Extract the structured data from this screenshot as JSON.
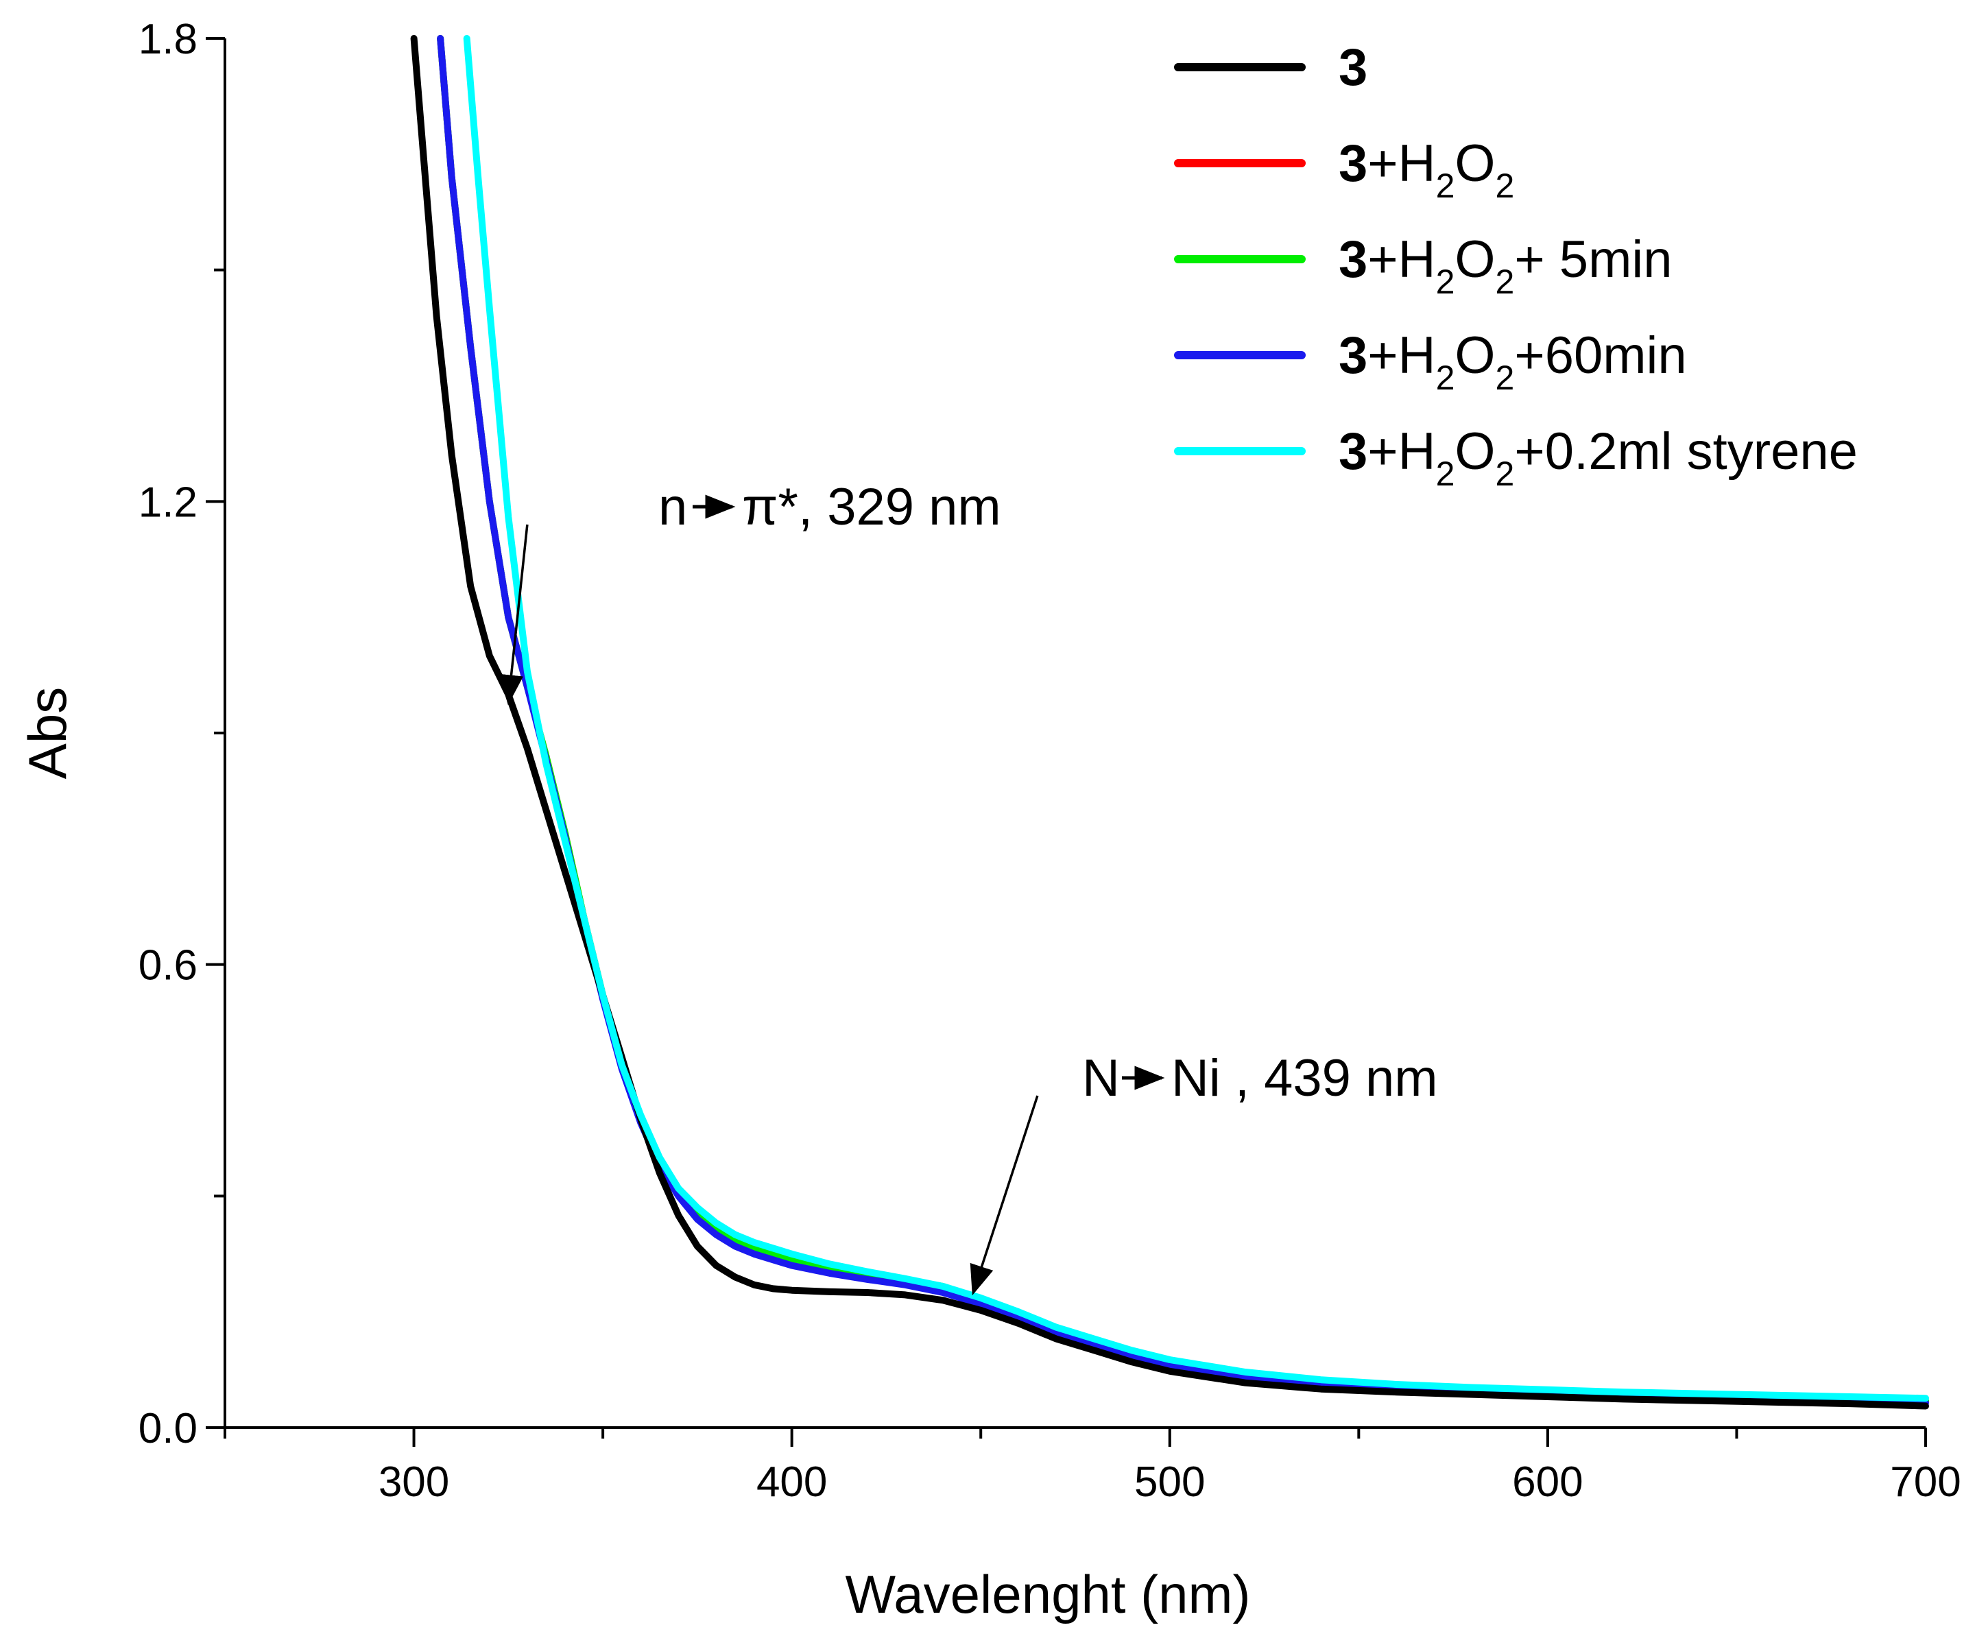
{
  "chart_data": {
    "type": "line",
    "title": "",
    "xlabel": "Wavelenght (nm)",
    "ylabel": "Abs",
    "xlim": [
      250,
      700
    ],
    "ylim": [
      0.0,
      1.8
    ],
    "x_ticks": [
      300,
      400,
      500,
      600,
      700
    ],
    "y_ticks": [
      0.0,
      0.6,
      1.2,
      1.8
    ],
    "x_tick_labels": [
      "300",
      "400",
      "500",
      "600",
      "700"
    ],
    "y_tick_labels": [
      "0.0",
      "0.6",
      "1.2",
      "1.8"
    ],
    "grid": false,
    "legend_position": "top-right",
    "series": [
      {
        "name": "3+H2O2",
        "label": {
          "bold": "3",
          "parts": [
            [
              "+H",
              ""
            ],
            [
              "2",
              "sub"
            ],
            [
              "O",
              ""
            ],
            [
              "2",
              "sub"
            ]
          ]
        },
        "color": "#ff0000",
        "x": [
          307,
          310,
          315,
          320,
          325,
          330,
          335,
          340,
          345,
          350,
          355,
          360,
          365,
          370,
          375,
          380,
          385,
          390,
          400,
          410,
          420,
          430,
          440,
          450,
          460,
          470,
          480,
          490,
          500,
          520,
          540,
          560,
          580,
          600,
          620,
          640,
          660,
          680,
          700
        ],
        "y": [
          1.8,
          1.62,
          1.4,
          1.2,
          1.05,
          0.96,
          0.87,
          0.77,
          0.66,
          0.56,
          0.47,
          0.4,
          0.345,
          0.305,
          0.275,
          0.255,
          0.24,
          0.23,
          0.215,
          0.205,
          0.197,
          0.19,
          0.18,
          0.165,
          0.145,
          0.125,
          0.11,
          0.095,
          0.083,
          0.067,
          0.058,
          0.052,
          0.048,
          0.045,
          0.042,
          0.04,
          0.038,
          0.036,
          0.034
        ]
      },
      {
        "name": "3+H2O2+ 5min",
        "label": {
          "bold": "3",
          "parts": [
            [
              "+H",
              ""
            ],
            [
              "2",
              "sub"
            ],
            [
              "O",
              ""
            ],
            [
              "2",
              "sub"
            ],
            [
              "+ 5min",
              ""
            ]
          ]
        },
        "color": "#00ee00",
        "x": [
          307,
          310,
          315,
          320,
          325,
          330,
          335,
          340,
          345,
          350,
          355,
          360,
          365,
          370,
          375,
          380,
          385,
          390,
          400,
          410,
          420,
          430,
          440,
          450,
          460,
          470,
          480,
          490,
          500,
          520,
          540,
          560,
          580,
          600,
          620,
          640,
          660,
          680,
          700
        ],
        "y": [
          1.8,
          1.62,
          1.4,
          1.2,
          1.05,
          0.96,
          0.87,
          0.77,
          0.66,
          0.56,
          0.47,
          0.4,
          0.345,
          0.305,
          0.278,
          0.258,
          0.243,
          0.232,
          0.217,
          0.207,
          0.199,
          0.192,
          0.183,
          0.167,
          0.147,
          0.127,
          0.111,
          0.096,
          0.084,
          0.068,
          0.059,
          0.053,
          0.049,
          0.046,
          0.043,
          0.041,
          0.039,
          0.037,
          0.035
        ]
      },
      {
        "name": "3+H2O2+60min",
        "label": {
          "bold": "3",
          "parts": [
            [
              "+H",
              ""
            ],
            [
              "2",
              "sub"
            ],
            [
              "O",
              ""
            ],
            [
              "2",
              "sub"
            ],
            [
              "+60min",
              ""
            ]
          ]
        },
        "color": "#1a1aee",
        "x": [
          307,
          310,
          315,
          320,
          325,
          330,
          335,
          340,
          345,
          350,
          355,
          360,
          365,
          370,
          375,
          380,
          385,
          390,
          400,
          410,
          420,
          430,
          440,
          450,
          460,
          470,
          480,
          490,
          500,
          520,
          540,
          560,
          580,
          600,
          620,
          640,
          660,
          680,
          700
        ],
        "y": [
          1.8,
          1.62,
          1.4,
          1.2,
          1.05,
          0.96,
          0.865,
          0.765,
          0.655,
          0.555,
          0.465,
          0.395,
          0.34,
          0.3,
          0.27,
          0.25,
          0.235,
          0.225,
          0.21,
          0.2,
          0.192,
          0.185,
          0.175,
          0.16,
          0.142,
          0.123,
          0.108,
          0.093,
          0.08,
          0.064,
          0.055,
          0.05,
          0.046,
          0.043,
          0.04,
          0.038,
          0.036,
          0.034,
          0.032
        ]
      },
      {
        "name": "3",
        "label": {
          "bold": "3",
          "parts": []
        },
        "color": "#000000",
        "x": [
          300,
          303,
          306,
          310,
          315,
          320,
          325,
          330,
          335,
          340,
          345,
          350,
          355,
          360,
          365,
          370,
          375,
          380,
          385,
          390,
          395,
          400,
          410,
          420,
          430,
          440,
          450,
          460,
          470,
          480,
          490,
          500,
          520,
          540,
          560,
          580,
          600,
          620,
          640,
          660,
          680,
          700
        ],
        "y": [
          1.8,
          1.62,
          1.44,
          1.26,
          1.09,
          1.0,
          0.95,
          0.88,
          0.8,
          0.72,
          0.64,
          0.56,
          0.48,
          0.4,
          0.33,
          0.275,
          0.235,
          0.21,
          0.195,
          0.185,
          0.18,
          0.178,
          0.176,
          0.175,
          0.172,
          0.165,
          0.152,
          0.135,
          0.115,
          0.1,
          0.085,
          0.073,
          0.058,
          0.05,
          0.046,
          0.043,
          0.04,
          0.037,
          0.035,
          0.033,
          0.031,
          0.028
        ]
      },
      {
        "name": "3+H2O2+0.2ml styrene",
        "label": {
          "bold": "3",
          "parts": [
            [
              "+H",
              ""
            ],
            [
              "2",
              "sub"
            ],
            [
              "O",
              ""
            ],
            [
              "2",
              "sub"
            ],
            [
              "+0.2ml styrene",
              ""
            ]
          ]
        },
        "color": "#00ffff",
        "x": [
          314,
          317,
          320,
          325,
          330,
          335,
          340,
          345,
          350,
          355,
          360,
          365,
          370,
          375,
          380,
          385,
          390,
          400,
          410,
          420,
          430,
          440,
          450,
          460,
          470,
          480,
          490,
          500,
          520,
          540,
          560,
          580,
          600,
          620,
          640,
          660,
          680,
          700
        ],
        "y": [
          1.8,
          1.62,
          1.45,
          1.18,
          0.98,
          0.86,
          0.76,
          0.66,
          0.56,
          0.47,
          0.405,
          0.35,
          0.31,
          0.285,
          0.265,
          0.25,
          0.24,
          0.225,
          0.212,
          0.202,
          0.193,
          0.183,
          0.168,
          0.15,
          0.13,
          0.115,
          0.1,
          0.088,
          0.072,
          0.062,
          0.056,
          0.052,
          0.049,
          0.046,
          0.044,
          0.042,
          0.04,
          0.038
        ]
      }
    ],
    "legend_order": [
      "3",
      "3+H2O2",
      "3+H2O2+ 5min",
      "3+H2O2+60min",
      "3+H2O2+0.2ml styrene"
    ],
    "annotations": [
      {
        "id": "n-pi",
        "left": "n",
        "right": "π*, 329 nm",
        "arrow_from": [
          330,
          1.17
        ],
        "arrow_to": [
          325,
          0.94
        ]
      },
      {
        "id": "n-ni",
        "left": "N",
        "right": "Ni , 439 nm",
        "arrow_from": [
          465,
          0.43
        ],
        "arrow_to": [
          448,
          0.175
        ]
      }
    ]
  }
}
